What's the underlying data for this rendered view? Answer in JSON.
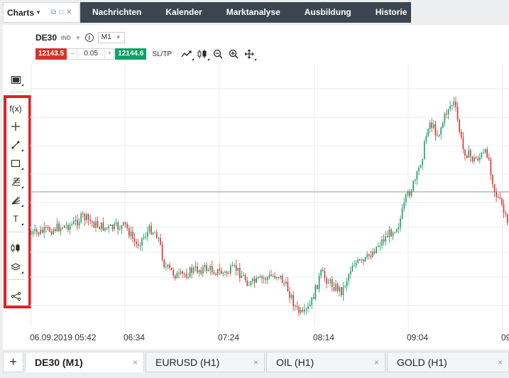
{
  "header": {
    "charts_menu_label": "Charts",
    "nav_tabs": [
      "Nachrichten",
      "Kalender",
      "Marktanalyse",
      "Ausbildung",
      "Historie"
    ]
  },
  "instrument": {
    "symbol": "DE30",
    "type": "IND",
    "info_icon": "i",
    "timeframe": "M1"
  },
  "trade": {
    "sell_price": "12143.5",
    "minus": "–",
    "quantity": "0.05",
    "plus": "+",
    "buy_price": "12144.6",
    "sltp_label": "SL/TP"
  },
  "toolbar_icons": [
    "chart-display-icon",
    "fx-indicators-icon",
    "crosshair-icon",
    "trendline-icon",
    "rectangle-icon",
    "fibonacci-icon",
    "gann-fan-icon",
    "text-tool-icon",
    "chart-type-candles-icon",
    "layers-icon",
    "share-icon"
  ],
  "toolbar_text": {
    "fx": "f(x)",
    "text_tool": "T"
  },
  "chart_data": {
    "type": "line",
    "description_type": "candlestick",
    "x_tick_labels": [
      "06.09.2019 05:42",
      "06:34",
      "07:24",
      "08:14",
      "09:04",
      "09:"
    ],
    "horizontal_price_line": "current price line",
    "colors": {
      "up": "#12a068",
      "down": "#d8312b",
      "grid": "#e9ebec"
    }
  },
  "bottom_tabs": [
    {
      "label": "DE30 (M1)",
      "close": "×",
      "active": true
    },
    {
      "label": "EURUSD (H1)",
      "close": "×",
      "active": false
    },
    {
      "label": "OIL (H1)",
      "close": "×",
      "active": false
    },
    {
      "label": "GOLD (H1)",
      "close": "×",
      "active": false
    }
  ],
  "add_tab_label": "+"
}
